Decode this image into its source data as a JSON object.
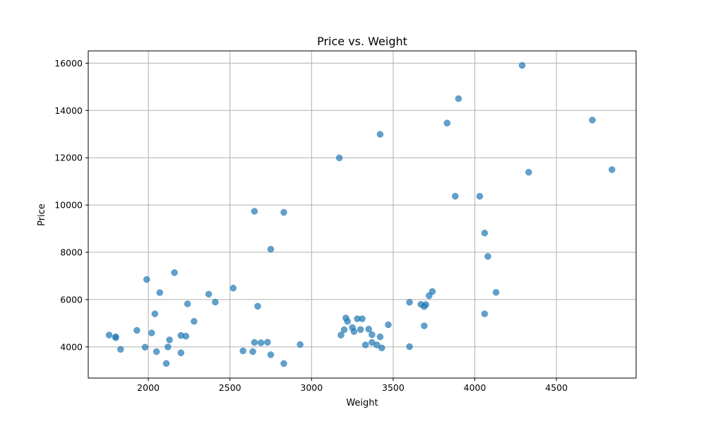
{
  "chart_data": {
    "type": "scatter",
    "title": "Price vs. Weight",
    "xlabel": "Weight",
    "ylabel": "Price",
    "xlim": [
      1632,
      4988
    ],
    "ylim": [
      2680,
      16520
    ],
    "xticks": [
      2000,
      2500,
      3000,
      3500,
      4000,
      4500
    ],
    "yticks": [
      4000,
      6000,
      8000,
      10000,
      12000,
      14000,
      16000
    ],
    "xtick_labels": [
      "2000",
      "2500",
      "3000",
      "3500",
      "4000",
      "4500"
    ],
    "ytick_labels": [
      "4000",
      "6000",
      "8000",
      "10000",
      "12000",
      "14000",
      "16000"
    ],
    "grid": true,
    "marker_color": "#1f77b4",
    "marker_alpha": 0.7,
    "points": [
      [
        1760,
        4499
      ],
      [
        1800,
        4424
      ],
      [
        1800,
        4389
      ],
      [
        1830,
        3895
      ],
      [
        1930,
        4697
      ],
      [
        1980,
        3984
      ],
      [
        1990,
        6850
      ],
      [
        2020,
        4589
      ],
      [
        2040,
        5397
      ],
      [
        2050,
        3798
      ],
      [
        2070,
        6295
      ],
      [
        2110,
        3299
      ],
      [
        2120,
        3995
      ],
      [
        2130,
        4296
      ],
      [
        2160,
        7140
      ],
      [
        2200,
        4482
      ],
      [
        2200,
        3748
      ],
      [
        2230,
        4453
      ],
      [
        2240,
        5819
      ],
      [
        2280,
        5079
      ],
      [
        2370,
        6229
      ],
      [
        2410,
        5895
      ],
      [
        2520,
        6486
      ],
      [
        2580,
        3829
      ],
      [
        2640,
        3799
      ],
      [
        2650,
        4187
      ],
      [
        2650,
        9735
      ],
      [
        2670,
        5719
      ],
      [
        2690,
        4172
      ],
      [
        2730,
        4195
      ],
      [
        2750,
        8129
      ],
      [
        2750,
        3667
      ],
      [
        2830,
        9690
      ],
      [
        2830,
        3291
      ],
      [
        2930,
        4099
      ],
      [
        3170,
        11995
      ],
      [
        3180,
        4499
      ],
      [
        3200,
        4723
      ],
      [
        3210,
        5222
      ],
      [
        3220,
        5079
      ],
      [
        3250,
        4816
      ],
      [
        3260,
        4647
      ],
      [
        3280,
        5189
      ],
      [
        3300,
        4733
      ],
      [
        3310,
        5189
      ],
      [
        3330,
        4082
      ],
      [
        3350,
        4749
      ],
      [
        3370,
        4516
      ],
      [
        3370,
        4187
      ],
      [
        3400,
        4082
      ],
      [
        3420,
        12990
      ],
      [
        3420,
        4424
      ],
      [
        3430,
        3955
      ],
      [
        3470,
        4934
      ],
      [
        3600,
        5886
      ],
      [
        3600,
        4010
      ],
      [
        3670,
        5798
      ],
      [
        3690,
        5705
      ],
      [
        3690,
        4890
      ],
      [
        3700,
        5788
      ],
      [
        3720,
        6165
      ],
      [
        3740,
        6342
      ],
      [
        3830,
        13466
      ],
      [
        3880,
        10372
      ],
      [
        3900,
        14500
      ],
      [
        4030,
        10371
      ],
      [
        4060,
        8814
      ],
      [
        4060,
        5397
      ],
      [
        4080,
        7827
      ],
      [
        4130,
        6303
      ],
      [
        4290,
        15906
      ],
      [
        4330,
        11385
      ],
      [
        4720,
        13594
      ],
      [
        4840,
        11497
      ]
    ]
  }
}
